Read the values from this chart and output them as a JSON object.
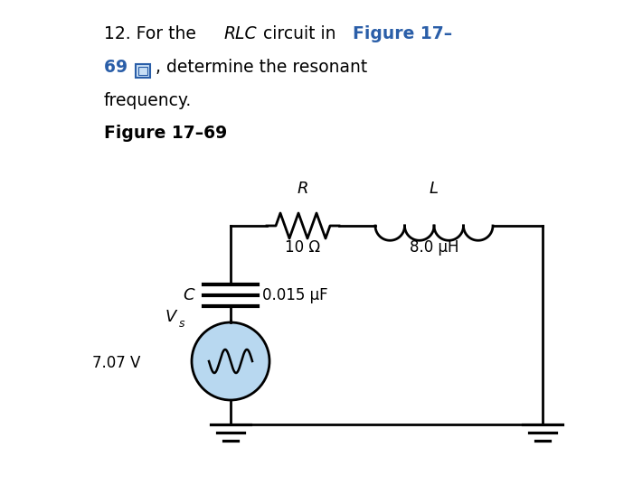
{
  "bg_color": "#ffffff",
  "line_color": "#000000",
  "text_color": "#000000",
  "bold_color": "#2a5ea8",
  "cap_fill": "#b8d8f0",
  "R_label": "R",
  "R_value": "10 Ω",
  "L_label": "L",
  "L_value": "8.0 μH",
  "C_label": "C",
  "C_value": "0.015 μF",
  "Vs_label": "V",
  "Vs_sub": "s",
  "Vs_value": "7.07 V",
  "fig_label": "Figure 17–69",
  "text_fontsize": 13.5,
  "label_fontsize": 13,
  "value_fontsize": 12
}
